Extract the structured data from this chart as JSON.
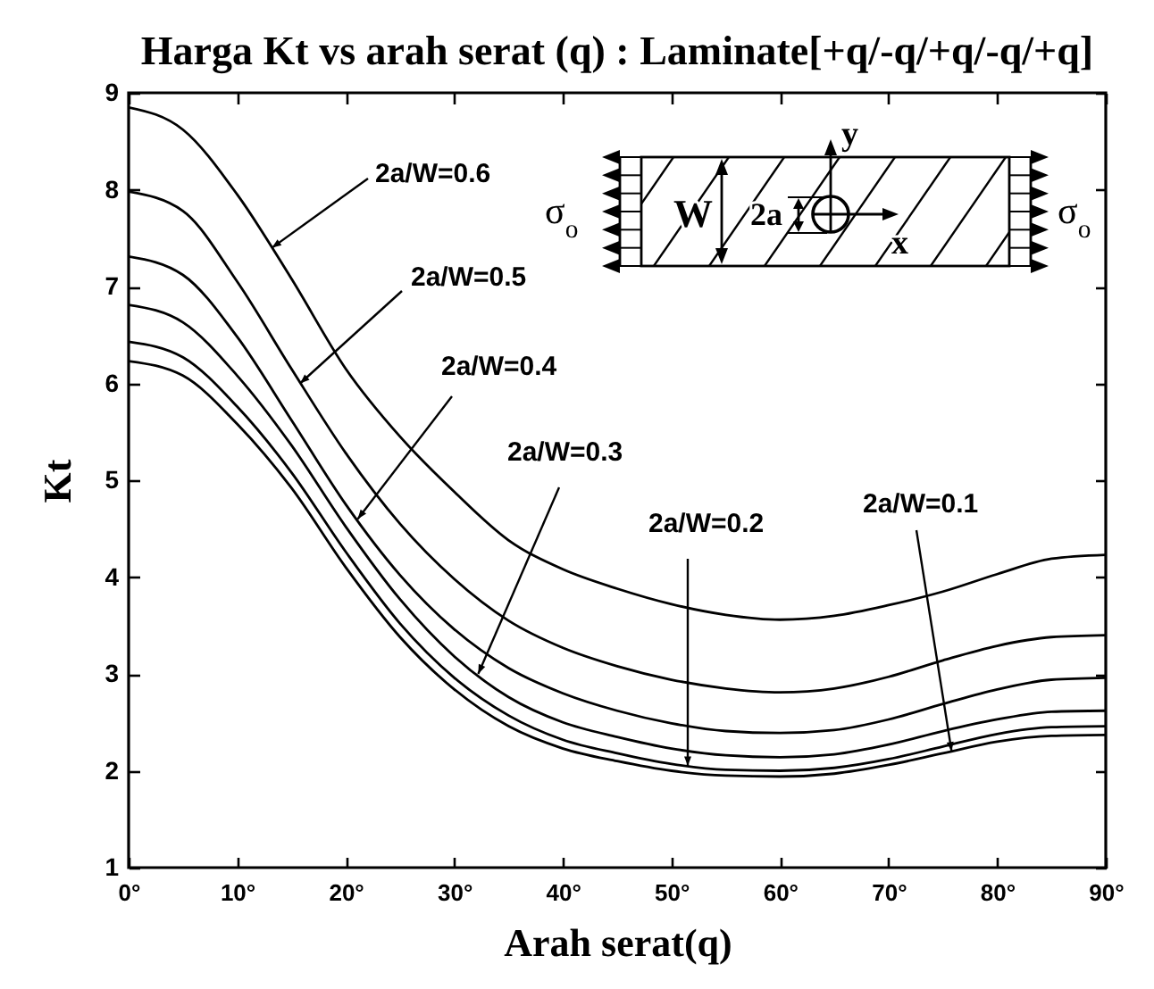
{
  "chart_data": {
    "type": "line",
    "title": "Harga Kt vs arah serat (q) : Laminate[+q/-q/+q/-q/+q]",
    "xlabel": "Arah serat(q)",
    "ylabel": "Kt",
    "x": [
      0,
      5,
      10,
      15,
      20,
      25,
      30,
      35,
      40,
      45,
      50,
      55,
      60,
      65,
      70,
      75,
      80,
      85,
      90
    ],
    "series": [
      {
        "color": "#000000",
        "values": [
          8.85,
          8.62,
          7.95,
          7.08,
          6.15,
          5.45,
          4.88,
          4.38,
          4.08,
          3.88,
          3.72,
          3.61,
          3.56,
          3.6,
          3.71,
          3.85,
          4.03,
          4.19,
          4.23
        ]
      },
      {
        "color": "#000000",
        "values": [
          7.98,
          7.78,
          7.05,
          6.15,
          5.28,
          4.55,
          3.98,
          3.55,
          3.27,
          3.08,
          2.94,
          2.85,
          2.81,
          2.85,
          2.97,
          3.14,
          3.29,
          3.38,
          3.4
        ]
      },
      {
        "color": "#000000",
        "values": [
          7.31,
          7.12,
          6.48,
          5.62,
          4.75,
          4.02,
          3.46,
          3.06,
          2.8,
          2.62,
          2.49,
          2.41,
          2.39,
          2.42,
          2.53,
          2.69,
          2.84,
          2.94,
          2.96
        ]
      },
      {
        "color": "#000000",
        "values": [
          6.81,
          6.63,
          6.08,
          5.36,
          4.52,
          3.77,
          3.18,
          2.76,
          2.5,
          2.35,
          2.23,
          2.16,
          2.14,
          2.17,
          2.27,
          2.41,
          2.53,
          2.61,
          2.62
        ]
      },
      {
        "color": "#000000",
        "values": [
          6.43,
          6.27,
          5.76,
          5.08,
          4.26,
          3.52,
          2.96,
          2.57,
          2.32,
          2.18,
          2.07,
          2.01,
          2.0,
          2.03,
          2.12,
          2.25,
          2.38,
          2.45,
          2.46
        ]
      },
      {
        "color": "#000000",
        "values": [
          6.23,
          6.08,
          5.58,
          4.92,
          4.1,
          3.38,
          2.84,
          2.46,
          2.23,
          2.1,
          2.0,
          1.95,
          1.94,
          1.97,
          2.06,
          2.18,
          2.3,
          2.36,
          2.37
        ]
      }
    ],
    "xlim": [
      0,
      90
    ],
    "xticks": [
      {
        "value": 0,
        "label": "0°"
      },
      {
        "value": 10,
        "label": "10°"
      },
      {
        "value": 20,
        "label": "20°"
      },
      {
        "value": 30,
        "label": "30°"
      },
      {
        "value": 40,
        "label": "40°"
      },
      {
        "value": 50,
        "label": "50°"
      },
      {
        "value": 60,
        "label": "60°"
      },
      {
        "value": 70,
        "label": "70°"
      },
      {
        "value": 80,
        "label": "80°"
      },
      {
        "value": 90,
        "label": "90°"
      }
    ],
    "ylim": [
      1,
      9
    ],
    "yticks": [
      1,
      2,
      3,
      4,
      5,
      6,
      7,
      8,
      9
    ],
    "annotations": [
      {
        "text": "2a/W=0.6",
        "x": 13.2,
        "y": 7.4
      },
      {
        "text": "2a/W=0.5",
        "x": 15.8,
        "y": 6.0
      },
      {
        "text": "2a/W=0.4",
        "x": 21.1,
        "y": 4.6
      },
      {
        "text": "2a/W=0.3",
        "x": 32.2,
        "y": 3.0
      },
      {
        "text": "2a/W=0.2",
        "x": 51.5,
        "y": 2.05
      },
      {
        "text": "2a/W=0.1",
        "x": 75.8,
        "y": 2.2
      },
      "σ$_{o}$",
      "σ$_{o}$",
      "W",
      "2a",
      "y",
      "x"
    ]
  }
}
